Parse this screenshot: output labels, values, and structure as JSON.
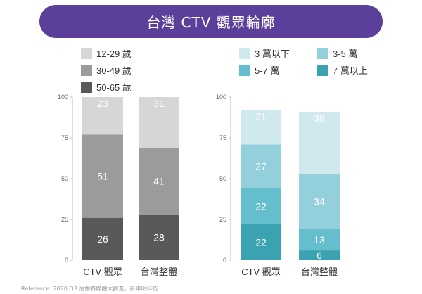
{
  "banner": {
    "title": "台灣 CTV 觀眾輪廓"
  },
  "reference": "Reference: 2020 Q3 尼爾森媒體大調查，新零明科技",
  "colors": {
    "banner": "#5b3f9b",
    "age": [
      "#d6d6d6",
      "#9b9b9b",
      "#595959"
    ],
    "income": [
      "#cfe9ef",
      "#94d0dc",
      "#64bece",
      "#3aa2b1"
    ]
  },
  "chart_data": [
    {
      "type": "bar",
      "stacked": true,
      "title": "",
      "categories": [
        "CTV 觀眾",
        "台灣整體"
      ],
      "ylim": [
        0,
        100
      ],
      "yticks": [
        0,
        25,
        50,
        75,
        100
      ],
      "legend_position": "top",
      "series": [
        {
          "name": "50-65 歲",
          "values": [
            26,
            28
          ],
          "color": "#595959"
        },
        {
          "name": "30-49 歲",
          "values": [
            51,
            41
          ],
          "color": "#9b9b9b"
        },
        {
          "name": "12-29 歲",
          "values": [
            23,
            31
          ],
          "color": "#d6d6d6"
        }
      ],
      "legend_order": [
        "12-29 歲",
        "30-49 歲",
        "50-65 歲"
      ]
    },
    {
      "type": "bar",
      "stacked": true,
      "title": "",
      "categories": [
        "CTV 觀眾",
        "台灣整體"
      ],
      "ylim": [
        0,
        100
      ],
      "yticks": [
        0,
        25,
        50,
        75,
        100
      ],
      "legend_position": "top",
      "series": [
        {
          "name": "7 萬以上",
          "values": [
            22,
            6
          ],
          "color": "#3aa2b1"
        },
        {
          "name": "5-7 萬",
          "values": [
            22,
            13
          ],
          "color": "#64bece"
        },
        {
          "name": "3-5 萬",
          "values": [
            27,
            34
          ],
          "color": "#94d0dc"
        },
        {
          "name": "3 萬以下",
          "values": [
            21,
            38
          ],
          "color": "#cfe9ef"
        }
      ],
      "legend_order": [
        "3 萬以下",
        "5-7 萬",
        "3-5 萬",
        "7 萬以上"
      ]
    }
  ]
}
